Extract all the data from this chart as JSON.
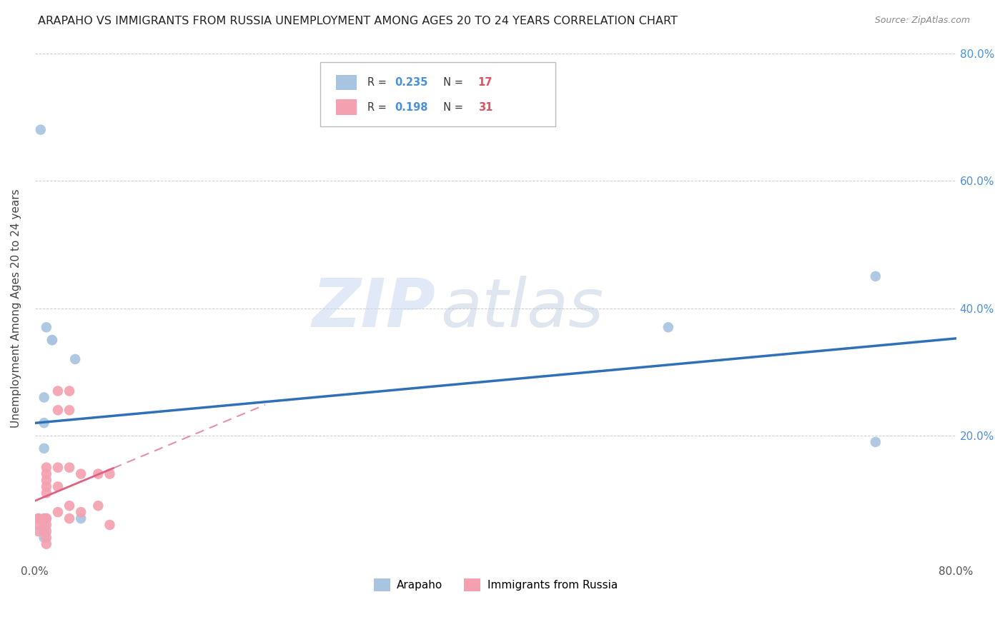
{
  "title": "ARAPAHO VS IMMIGRANTS FROM RUSSIA UNEMPLOYMENT AMONG AGES 20 TO 24 YEARS CORRELATION CHART",
  "source": "Source: ZipAtlas.com",
  "ylabel": "Unemployment Among Ages 20 to 24 years",
  "xlim": [
    0.0,
    0.8
  ],
  "ylim": [
    0.0,
    0.8
  ],
  "arapaho_x": [
    0.005,
    0.01,
    0.015,
    0.015,
    0.035,
    0.008,
    0.008,
    0.008,
    0.008,
    0.008,
    0.04,
    0.73,
    0.55,
    0.008,
    0.008,
    0.73,
    0.008
  ],
  "arapaho_y": [
    0.68,
    0.37,
    0.35,
    0.35,
    0.32,
    0.26,
    0.22,
    0.18,
    0.07,
    0.07,
    0.07,
    0.45,
    0.37,
    0.06,
    0.05,
    0.19,
    0.04
  ],
  "russia_x": [
    0.003,
    0.003,
    0.003,
    0.003,
    0.01,
    0.01,
    0.01,
    0.01,
    0.01,
    0.01,
    0.01,
    0.01,
    0.01,
    0.01,
    0.01,
    0.02,
    0.02,
    0.02,
    0.02,
    0.02,
    0.03,
    0.03,
    0.03,
    0.03,
    0.03,
    0.04,
    0.04,
    0.055,
    0.055,
    0.065,
    0.065
  ],
  "russia_y": [
    0.07,
    0.07,
    0.06,
    0.05,
    0.15,
    0.14,
    0.13,
    0.12,
    0.11,
    0.07,
    0.07,
    0.06,
    0.05,
    0.04,
    0.03,
    0.27,
    0.24,
    0.15,
    0.12,
    0.08,
    0.27,
    0.24,
    0.15,
    0.09,
    0.07,
    0.14,
    0.08,
    0.14,
    0.09,
    0.14,
    0.06
  ],
  "arapaho_line_x": [
    0.0,
    0.8
  ],
  "russia_line_x_min": 0.0,
  "russia_line_x_max": 0.2,
  "arapaho_color": "#a8c4e0",
  "russia_color": "#f4a0b0",
  "arapaho_line_color": "#3070b8",
  "russia_line_color": "#e06080",
  "watermark_zip": "ZIP",
  "watermark_atlas": "atlas",
  "background_color": "#ffffff",
  "grid_color": "#cccccc",
  "legend_R1": "0.235",
  "legend_N1": "17",
  "legend_R2": "0.198",
  "legend_N2": "31",
  "bottom_legend_labels": [
    "Arapaho",
    "Immigrants from Russia"
  ]
}
